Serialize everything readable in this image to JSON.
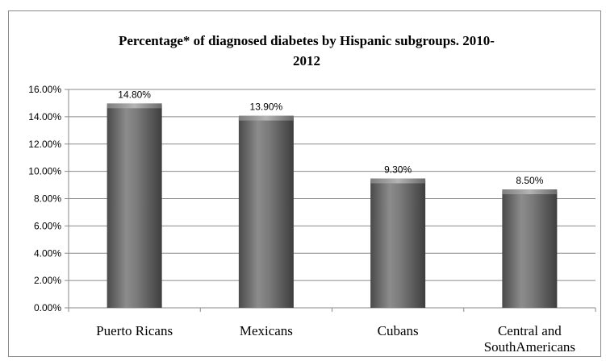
{
  "chart_data": {
    "type": "bar",
    "title": "Percentage* of diagnosed diabetes by Hispanic subgroups. 2010-2012",
    "title_lines": [
      "Percentage* of diagnosed diabetes by Hispanic subgroups. 2010-",
      "2012"
    ],
    "categories": [
      "Puerto Ricans",
      "Mexicans",
      "Cubans",
      "Central and SouthAmericans"
    ],
    "category_lines": [
      [
        "Puerto Ricans"
      ],
      [
        "Mexicans"
      ],
      [
        "Cubans"
      ],
      [
        "Central and",
        "SouthAmericans"
      ]
    ],
    "values": [
      14.8,
      13.9,
      9.3,
      8.5
    ],
    "data_labels": [
      "14.80%",
      "13.90%",
      "9.30%",
      "8.50%"
    ],
    "y_ticks": [
      "0.00%",
      "2.00%",
      "4.00%",
      "6.00%",
      "8.00%",
      "10.00%",
      "12.00%",
      "14.00%",
      "16.00%"
    ],
    "ylim": [
      0,
      16
    ],
    "y_step": 2,
    "grid": true,
    "legend": "none",
    "bar_color": "#6e6e6e"
  }
}
